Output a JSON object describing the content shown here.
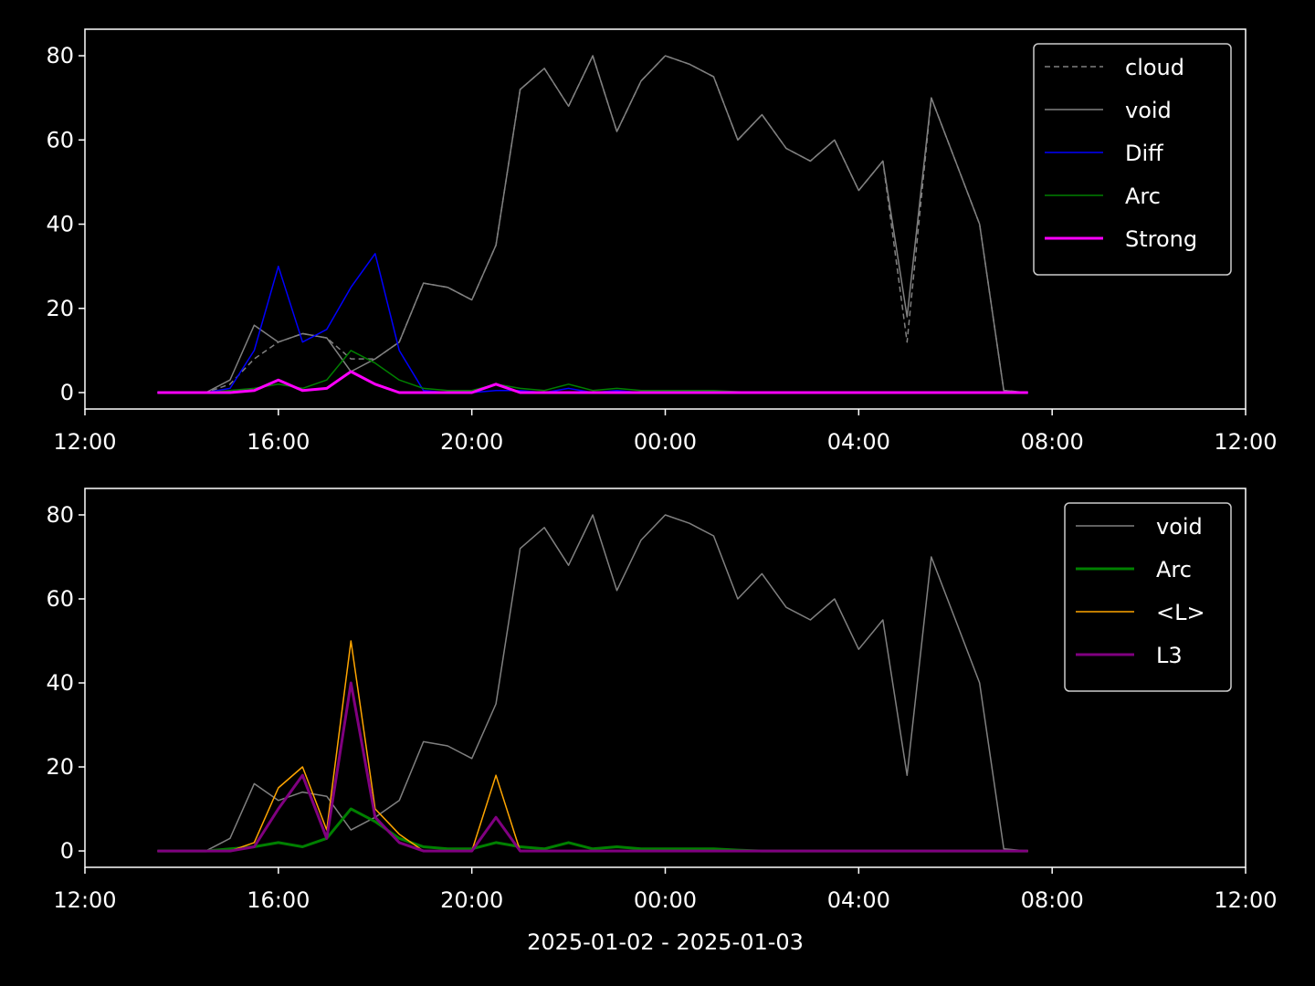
{
  "chart_data": [
    {
      "type": "line",
      "x": [
        "2025-01-02T13:30",
        "2025-01-02T14:00",
        "2025-01-02T14:30",
        "2025-01-02T15:00",
        "2025-01-02T15:30",
        "2025-01-02T16:00",
        "2025-01-02T16:30",
        "2025-01-02T17:00",
        "2025-01-02T17:30",
        "2025-01-02T18:00",
        "2025-01-02T18:30",
        "2025-01-02T19:00",
        "2025-01-02T19:30",
        "2025-01-02T20:00",
        "2025-01-02T20:30",
        "2025-01-02T21:00",
        "2025-01-02T21:30",
        "2025-01-02T22:00",
        "2025-01-02T22:30",
        "2025-01-02T23:00",
        "2025-01-02T23:30",
        "2025-01-03T00:00",
        "2025-01-03T00:30",
        "2025-01-03T01:00",
        "2025-01-03T01:30",
        "2025-01-03T02:00",
        "2025-01-03T02:30",
        "2025-01-03T03:00",
        "2025-01-03T03:30",
        "2025-01-03T04:00",
        "2025-01-03T04:30",
        "2025-01-03T05:00",
        "2025-01-03T05:30",
        "2025-01-03T06:00",
        "2025-01-03T06:30",
        "2025-01-03T07:00",
        "2025-01-03T07:30"
      ],
      "series": [
        {
          "name": "cloud",
          "color": "#808080",
          "dash": true,
          "width": 1.5,
          "values": [
            0,
            0,
            0,
            2,
            8,
            12,
            14,
            13,
            8,
            8,
            12,
            26,
            25,
            22,
            35,
            72,
            77,
            68,
            80,
            62,
            74,
            80,
            78,
            75,
            60,
            66,
            58,
            55,
            60,
            48,
            55,
            12,
            70,
            55,
            40,
            0.5,
            0
          ]
        },
        {
          "name": "void",
          "color": "#808080",
          "dash": false,
          "width": 1.5,
          "values": [
            0,
            0,
            0,
            3,
            16,
            12,
            14,
            13,
            5,
            8,
            12,
            26,
            25,
            22,
            35,
            72,
            77,
            68,
            80,
            62,
            74,
            80,
            78,
            75,
            60,
            66,
            58,
            55,
            60,
            48,
            55,
            18,
            70,
            55,
            40,
            0.5,
            0
          ]
        },
        {
          "name": "Diff",
          "color": "#0000ff",
          "dash": false,
          "width": 1.5,
          "values": [
            0,
            0,
            0,
            1,
            10,
            30,
            12,
            15,
            25,
            33,
            10,
            0.5,
            0,
            0,
            0.5,
            0.5,
            0,
            1,
            0,
            0.5,
            0,
            0.5,
            0,
            0,
            0,
            0,
            0,
            0,
            0,
            0,
            0,
            0,
            0,
            0,
            0,
            0,
            0
          ]
        },
        {
          "name": "Arc",
          "color": "#008000",
          "dash": false,
          "width": 1.5,
          "values": [
            0,
            0,
            0,
            0.5,
            1,
            2,
            1,
            3,
            10,
            7,
            3,
            1,
            0.5,
            0.5,
            2,
            1,
            0.5,
            2,
            0.5,
            1,
            0.5,
            0.5,
            0.5,
            0.5,
            0.2,
            0,
            0,
            0,
            0,
            0,
            0,
            0,
            0,
            0,
            0,
            0,
            0
          ]
        },
        {
          "name": "Strong",
          "color": "#ff00ff",
          "dash": false,
          "width": 3,
          "values": [
            0,
            0,
            0,
            0,
            0.5,
            3,
            0.5,
            1,
            5,
            2,
            0,
            0,
            0,
            0,
            2,
            0,
            0,
            0,
            0,
            0,
            0,
            0,
            0,
            0,
            0,
            0,
            0,
            0,
            0,
            0,
            0,
            0,
            0,
            0,
            0,
            0,
            0
          ]
        }
      ],
      "xlim": [
        "2025-01-02T12:00",
        "2025-01-03T12:00"
      ],
      "xticks": [
        {
          "value": "2025-01-02T12:00",
          "label": "12:00"
        },
        {
          "value": "2025-01-02T16:00",
          "label": "16:00"
        },
        {
          "value": "2025-01-02T20:00",
          "label": "20:00"
        },
        {
          "value": "2025-01-03T00:00",
          "label": "00:00"
        },
        {
          "value": "2025-01-03T04:00",
          "label": "04:00"
        },
        {
          "value": "2025-01-03T08:00",
          "label": "08:00"
        },
        {
          "value": "2025-01-03T12:00",
          "label": "12:00"
        }
      ],
      "ylim": [
        -3.9,
        86.3
      ],
      "yticks": [
        0,
        20,
        40,
        60,
        80
      ],
      "legend": "upper right"
    },
    {
      "type": "line",
      "x": [
        "2025-01-02T13:30",
        "2025-01-02T14:00",
        "2025-01-02T14:30",
        "2025-01-02T15:00",
        "2025-01-02T15:30",
        "2025-01-02T16:00",
        "2025-01-02T16:30",
        "2025-01-02T17:00",
        "2025-01-02T17:30",
        "2025-01-02T18:00",
        "2025-01-02T18:30",
        "2025-01-02T19:00",
        "2025-01-02T19:30",
        "2025-01-02T20:00",
        "2025-01-02T20:30",
        "2025-01-02T21:00",
        "2025-01-02T21:30",
        "2025-01-02T22:00",
        "2025-01-02T22:30",
        "2025-01-02T23:00",
        "2025-01-02T23:30",
        "2025-01-03T00:00",
        "2025-01-03T00:30",
        "2025-01-03T01:00",
        "2025-01-03T01:30",
        "2025-01-03T02:00",
        "2025-01-03T02:30",
        "2025-01-03T03:00",
        "2025-01-03T03:30",
        "2025-01-03T04:00",
        "2025-01-03T04:30",
        "2025-01-03T05:00",
        "2025-01-03T05:30",
        "2025-01-03T06:00",
        "2025-01-03T06:30",
        "2025-01-03T07:00",
        "2025-01-03T07:30"
      ],
      "series": [
        {
          "name": "void",
          "color": "#808080",
          "dash": false,
          "width": 1.5,
          "values": [
            0,
            0,
            0,
            3,
            16,
            12,
            14,
            13,
            5,
            8,
            12,
            26,
            25,
            22,
            35,
            72,
            77,
            68,
            80,
            62,
            74,
            80,
            78,
            75,
            60,
            66,
            58,
            55,
            60,
            48,
            55,
            18,
            70,
            55,
            40,
            0.5,
            0
          ]
        },
        {
          "name": "Arc",
          "color": "#008000",
          "dash": false,
          "width": 3,
          "values": [
            0,
            0,
            0,
            0.5,
            1,
            2,
            1,
            3,
            10,
            7,
            3,
            1,
            0.5,
            0.5,
            2,
            1,
            0.5,
            2,
            0.5,
            1,
            0.5,
            0.5,
            0.5,
            0.5,
            0.2,
            0,
            0,
            0,
            0,
            0,
            0,
            0,
            0,
            0,
            0,
            0,
            0
          ]
        },
        {
          "name": "<L>",
          "color": "#ffa500",
          "dash": false,
          "width": 1.5,
          "values": [
            0,
            0,
            0,
            0,
            2,
            15,
            20,
            5,
            50,
            10,
            4,
            0,
            0,
            0,
            18,
            0,
            0,
            0,
            0,
            0,
            0,
            0,
            0,
            0,
            0,
            0,
            0,
            0,
            0,
            0,
            0,
            0,
            0,
            0,
            0,
            0,
            0
          ]
        },
        {
          "name": "L3",
          "color": "#800080",
          "dash": false,
          "width": 3,
          "values": [
            0,
            0,
            0,
            0,
            1,
            10,
            18,
            3,
            40,
            8,
            2,
            0,
            0,
            0,
            8,
            0,
            0,
            0,
            0,
            0,
            0,
            0,
            0,
            0,
            0,
            0,
            0,
            0,
            0,
            0,
            0,
            0,
            0,
            0,
            0,
            0,
            0
          ]
        }
      ],
      "xlim": [
        "2025-01-02T12:00",
        "2025-01-03T12:00"
      ],
      "xticks": [
        {
          "value": "2025-01-02T12:00",
          "label": "12:00"
        },
        {
          "value": "2025-01-02T16:00",
          "label": "16:00"
        },
        {
          "value": "2025-01-02T20:00",
          "label": "20:00"
        },
        {
          "value": "2025-01-03T00:00",
          "label": "00:00"
        },
        {
          "value": "2025-01-03T04:00",
          "label": "04:00"
        },
        {
          "value": "2025-01-03T08:00",
          "label": "08:00"
        },
        {
          "value": "2025-01-03T12:00",
          "label": "12:00"
        }
      ],
      "ylim": [
        -3.9,
        86.3
      ],
      "yticks": [
        0,
        20,
        40,
        60,
        80
      ],
      "legend": "upper right",
      "xlabel": "2025-01-02 - 2025-01-03"
    }
  ]
}
